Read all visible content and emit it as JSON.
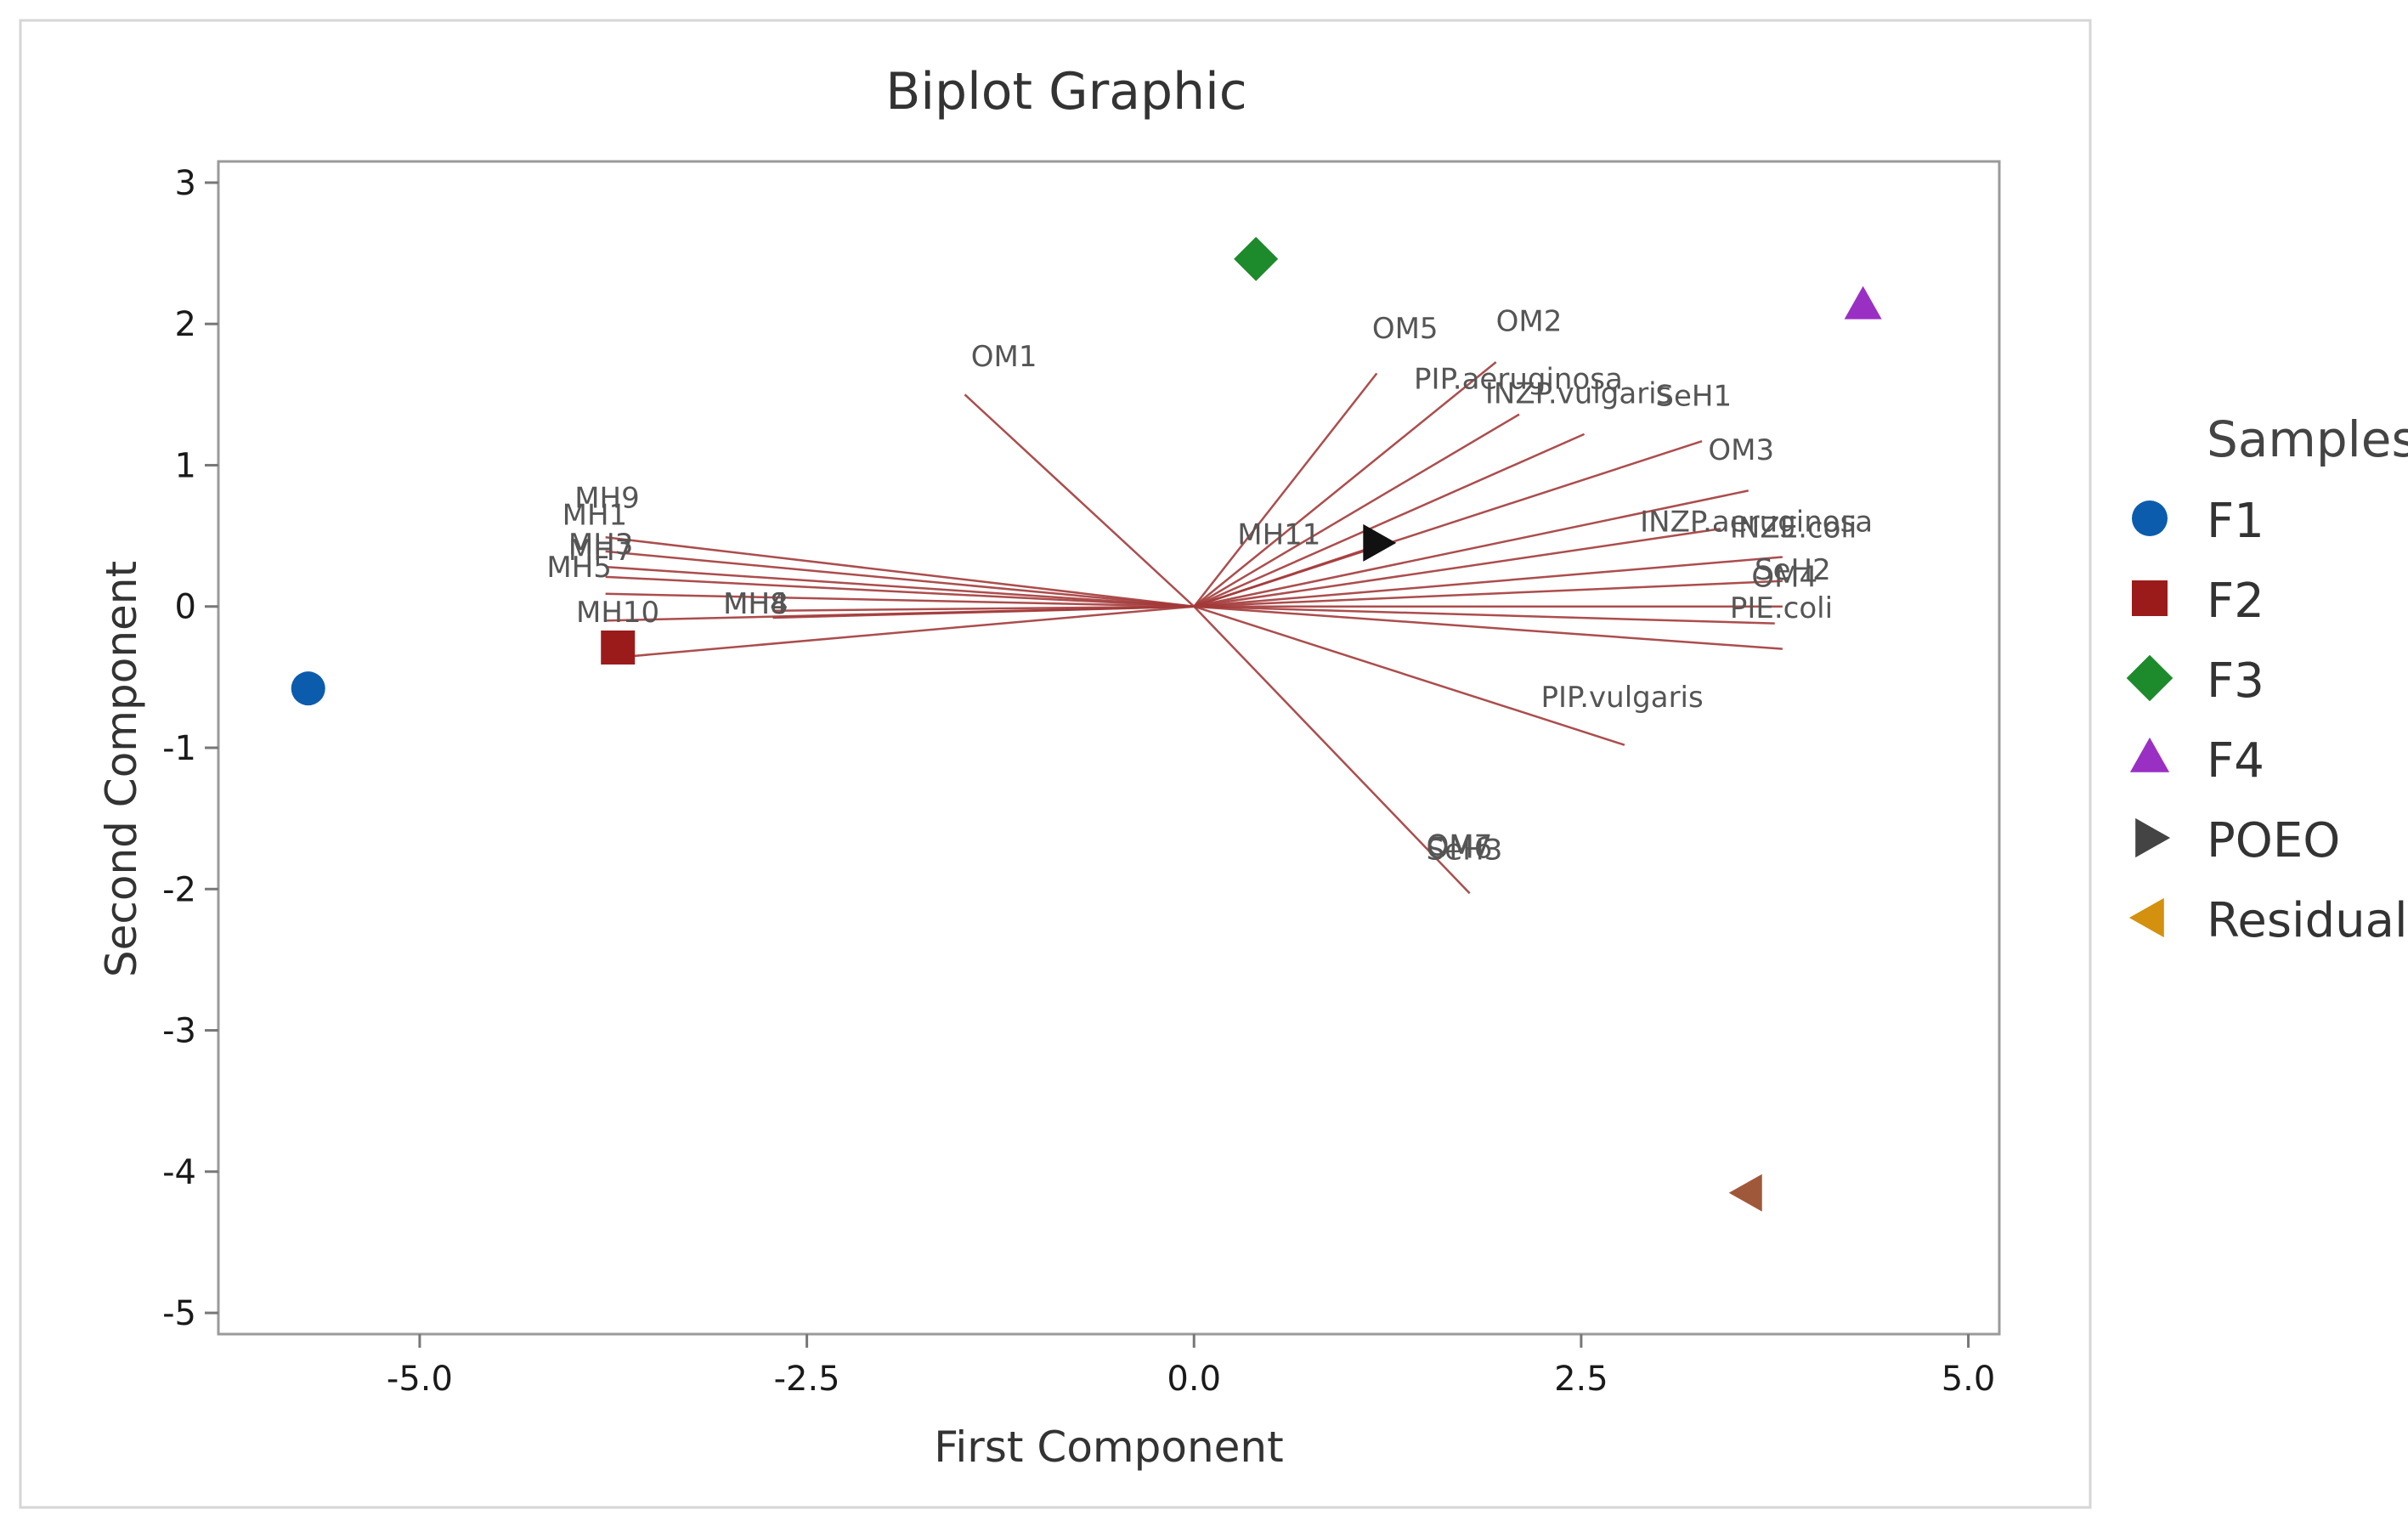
{
  "chart_data": {
    "type": "scatter",
    "subtype": "biplot",
    "title": "Biplot  Graphic",
    "xlabel": "First Component",
    "ylabel": "Second Component",
    "xlim": [
      -6.3,
      5.2
    ],
    "ylim": [
      -5.15,
      3.15
    ],
    "xticks": [
      -5.0,
      -2.5,
      0.0,
      2.5,
      5.0
    ],
    "xtick_labels": [
      "-5.0",
      "-2.5",
      "0.0",
      "2.5",
      "5.0"
    ],
    "yticks": [
      3,
      2,
      1,
      0,
      -1,
      -2,
      -3,
      -4,
      -5
    ],
    "ytick_labels": [
      "3",
      "2",
      "1",
      "0",
      "-1",
      "-2",
      "-3",
      "-4",
      "-5"
    ],
    "legend": {
      "title": "Samples",
      "position": "right"
    },
    "samples": [
      {
        "name": "F1",
        "x": -5.72,
        "y": -0.58,
        "marker": "circle",
        "color": "#0b5cad"
      },
      {
        "name": "F2",
        "x": -3.72,
        "y": -0.29,
        "marker": "square",
        "color": "#9b1b1b"
      },
      {
        "name": "F3",
        "x": 0.4,
        "y": 2.46,
        "marker": "diamond",
        "color": "#1d8a2c"
      },
      {
        "name": "F4",
        "x": 4.32,
        "y": 2.13,
        "marker": "triangle-up",
        "color": "#9a2fc4"
      },
      {
        "name": "POEO",
        "x": 1.18,
        "y": 0.45,
        "marker": "triangle-right",
        "color": "#111111"
      },
      {
        "name": "Residual",
        "x": 3.58,
        "y": -4.15,
        "marker": "triangle-left",
        "color": "#a0583a"
      }
    ],
    "legend_entries": [
      {
        "name": "F1",
        "marker": "circle",
        "color": "#0b5cad"
      },
      {
        "name": "F2",
        "marker": "square",
        "color": "#9b1b1b"
      },
      {
        "name": "F3",
        "marker": "diamond",
        "color": "#1d8a2c"
      },
      {
        "name": "F4",
        "marker": "triangle-up",
        "color": "#9a2fc4"
      },
      {
        "name": "POEO",
        "marker": "triangle-right",
        "color": "#444444"
      },
      {
        "name": "Residual",
        "marker": "triangle-left",
        "color": "#d4900f"
      }
    ],
    "vector_color": "#a33a3a",
    "vectors": [
      {
        "x": -1.48,
        "y": 1.5
      },
      {
        "x": 1.18,
        "y": 1.65
      },
      {
        "x": 1.95,
        "y": 1.73
      },
      {
        "x": 2.1,
        "y": 1.36
      },
      {
        "x": 2.52,
        "y": 1.22
      },
      {
        "x": 3.28,
        "y": 1.17
      },
      {
        "x": 3.58,
        "y": 0.82
      },
      {
        "x": 3.4,
        "y": 0.55
      },
      {
        "x": 3.8,
        "y": 0.35
      },
      {
        "x": 3.8,
        "y": 0.18
      },
      {
        "x": 3.8,
        "y": 0.0
      },
      {
        "x": 3.75,
        "y": -0.12
      },
      {
        "x": 3.8,
        "y": -0.3
      },
      {
        "x": 2.78,
        "y": -0.98
      },
      {
        "x": 1.78,
        "y": -2.03
      },
      {
        "x": 1.1,
        "y": 0.4
      },
      {
        "x": -3.8,
        "y": 0.49
      },
      {
        "x": -3.8,
        "y": 0.39
      },
      {
        "x": -3.8,
        "y": 0.28
      },
      {
        "x": -3.8,
        "y": 0.21
      },
      {
        "x": -3.8,
        "y": 0.09
      },
      {
        "x": -3.8,
        "y": -0.1
      },
      {
        "x": -3.72,
        "y": -0.36
      },
      {
        "x": -2.72,
        "y": -0.08
      },
      {
        "x": -2.72,
        "y": -0.03
      }
    ],
    "loadings": [
      {
        "label": "OM1",
        "x": -1.44,
        "y": 1.7
      },
      {
        "label": "OM5",
        "x": 1.15,
        "y": 1.9
      },
      {
        "label": "OM2",
        "x": 1.95,
        "y": 1.95
      },
      {
        "label": "PIP.aeruginosa",
        "x": 1.42,
        "y": 1.54
      },
      {
        "label": "INZP.vulgaris",
        "x": 1.88,
        "y": 1.44
      },
      {
        "label": "SeH1",
        "x": 2.98,
        "y": 1.42
      },
      {
        "label": "OM3",
        "x": 3.32,
        "y": 1.04
      },
      {
        "label": "INZP.aeruginosa",
        "x": 2.88,
        "y": 0.53
      },
      {
        "label": "INZE.coli",
        "x": 3.46,
        "y": 0.49
      },
      {
        "label": "SeH2",
        "x": 3.62,
        "y": 0.19
      },
      {
        "label": "OM4",
        "x": 3.6,
        "y": 0.14
      },
      {
        "label": "PIE.coli",
        "x": 3.46,
        "y": -0.08
      },
      {
        "label": "PIP.vulgaris",
        "x": 2.24,
        "y": -0.71
      },
      {
        "label": "OM7",
        "x": 1.5,
        "y": -1.76
      },
      {
        "label": "OM6",
        "x": 1.5,
        "y": -1.78
      },
      {
        "label": "SeH3",
        "x": 1.5,
        "y": -1.79
      },
      {
        "label": "MH11",
        "x": 0.28,
        "y": 0.44
      },
      {
        "label": "MH9",
        "x": -4.0,
        "y": 0.7
      },
      {
        "label": "MH1",
        "x": -4.08,
        "y": 0.58
      },
      {
        "label": "MH3",
        "x": -4.04,
        "y": 0.37
      },
      {
        "label": "MH7",
        "x": -4.04,
        "y": 0.33
      },
      {
        "label": "MH5",
        "x": -4.18,
        "y": 0.21
      },
      {
        "label": "MH10",
        "x": -3.99,
        "y": -0.11
      },
      {
        "label": "MH8",
        "x": -3.04,
        "y": -0.05
      },
      {
        "label": "MH4",
        "x": -3.04,
        "y": -0.05
      }
    ]
  }
}
